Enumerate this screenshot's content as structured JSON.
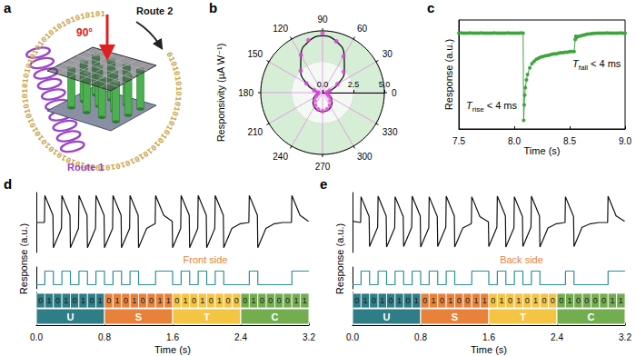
{
  "diagram": {
    "panel": "a",
    "ring_text": "01010101010101010101010101010101010101010101010101010101010101010101010101010101",
    "angle_label": "90°",
    "route1": "Route 1",
    "route2": "Route 2"
  },
  "chart_data": [
    {
      "panel": "b",
      "type": "polar",
      "ylabel": "Responsivity (µA W⁻¹)",
      "annotation": "Route 1",
      "grid": true,
      "xlim": [
        0,
        360
      ],
      "xticks": [
        0,
        30,
        60,
        90,
        120,
        150,
        180,
        210,
        240,
        270,
        300,
        330
      ],
      "ylim": [
        0,
        5
      ],
      "yticks": [
        {
          "value": 0,
          "label": "0.0"
        },
        2.5,
        {
          "value": 5,
          "label": "5.0"
        }
      ],
      "series": [
        {
          "type": "line",
          "color": "#111111",
          "line_style": "solid",
          "x": [
            0,
            15,
            30,
            45,
            60,
            75,
            90,
            105,
            120,
            135,
            150,
            165,
            180,
            195,
            210,
            225,
            240,
            255,
            270,
            285,
            300,
            315,
            330,
            345,
            360
          ],
          "values": [
            0.3,
            0.7,
            1.5,
            2.5,
            3.5,
            4.3,
            4.6,
            4.3,
            3.5,
            2.5,
            1.5,
            0.7,
            0.3,
            0.5,
            0.8,
            1.1,
            1.35,
            1.5,
            1.55,
            1.5,
            1.35,
            1.1,
            0.8,
            0.5,
            0.3
          ]
        },
        {
          "type": "scatter",
          "color": "#d946d9",
          "marker": "circle",
          "x": [
            0,
            15,
            30,
            45,
            60,
            75,
            90,
            105,
            120,
            135,
            150,
            165,
            180,
            195,
            210,
            225,
            240,
            255,
            270,
            285,
            300,
            315,
            330,
            345
          ],
          "values": [
            0.35,
            0.6,
            1.4,
            2.4,
            3.4,
            4.3,
            4.8,
            4.4,
            3.5,
            2.5,
            1.5,
            0.7,
            0.35,
            0.4,
            0.6,
            0.9,
            1.2,
            1.4,
            1.5,
            1.4,
            1.2,
            0.9,
            0.6,
            0.4
          ]
        }
      ]
    },
    {
      "panel": "c",
      "type": "line",
      "xlabel": "Time (s)",
      "ylabel": "Response (a.u.)",
      "color": "#3fa33f",
      "marker": "circle",
      "grid": false,
      "tick_labels": "x",
      "xlim": [
        7.5,
        9.0
      ],
      "xticks": [
        7.5,
        {
          "value": 8,
          "label": "8.0"
        },
        8.5,
        {
          "value": 9,
          "label": "9.0"
        }
      ],
      "ylim": [
        0,
        1
      ],
      "yticks": [],
      "annotations": [
        {
          "italic": "T",
          "sub": "rise",
          "text": " < 4 ms"
        },
        {
          "italic": "T",
          "sub": "fall",
          "text": " < 4 ms"
        }
      ],
      "x": [
        7.5,
        7.52,
        7.54,
        7.56,
        7.58,
        7.6,
        7.62,
        7.64,
        7.66,
        7.68,
        7.7,
        7.72,
        7.74,
        7.76,
        7.78,
        7.8,
        7.82,
        7.84,
        7.86,
        7.88,
        7.9,
        7.92,
        7.94,
        7.96,
        7.98,
        8.0,
        8.02,
        8.04,
        8.06,
        8.08,
        8.085,
        8.09,
        8.095,
        8.1,
        8.11,
        8.12,
        8.14,
        8.16,
        8.18,
        8.2,
        8.22,
        8.24,
        8.26,
        8.28,
        8.3,
        8.32,
        8.34,
        8.36,
        8.38,
        8.4,
        8.42,
        8.44,
        8.46,
        8.48,
        8.5,
        8.52,
        8.54,
        8.55,
        8.555,
        8.56,
        8.57,
        8.58,
        8.6,
        8.62,
        8.64,
        8.66,
        8.68,
        8.7,
        8.72,
        8.74,
        8.76,
        8.78,
        8.8,
        8.82,
        8.84,
        8.86,
        8.88,
        8.9,
        8.92,
        8.94,
        8.96,
        8.98,
        9.0
      ],
      "values": [
        0.88,
        0.881,
        0.879,
        0.88,
        0.88,
        0.881,
        0.88,
        0.879,
        0.88,
        0.88,
        0.881,
        0.88,
        0.88,
        0.879,
        0.88,
        0.88,
        0.881,
        0.88,
        0.88,
        0.879,
        0.88,
        0.88,
        0.881,
        0.88,
        0.88,
        0.879,
        0.88,
        0.88,
        0.881,
        0.88,
        0.08,
        0.22,
        0.31,
        0.38,
        0.45,
        0.5,
        0.56,
        0.6,
        0.62,
        0.64,
        0.65,
        0.66,
        0.665,
        0.67,
        0.675,
        0.68,
        0.685,
        0.69,
        0.69,
        0.695,
        0.7,
        0.7,
        0.705,
        0.705,
        0.71,
        0.71,
        0.71,
        0.82,
        0.85,
        0.84,
        0.845,
        0.85,
        0.855,
        0.86,
        0.865,
        0.87,
        0.872,
        0.875,
        0.877,
        0.878,
        0.879,
        0.88,
        0.88,
        0.88,
        0.881,
        0.88,
        0.88,
        0.879,
        0.88,
        0.88,
        0.881,
        0.88,
        0.88
      ]
    },
    {
      "panel": "d",
      "type": "line",
      "xlabel": "Time (s)",
      "ylabel": "Response (a.u.)",
      "annotation": "Front side",
      "grid": false,
      "tick_labels": "x",
      "xlim": [
        0,
        3.2
      ],
      "xticks": [
        {
          "value": 0,
          "label": "0.0"
        },
        0.8,
        1.6,
        2.4,
        3.2
      ],
      "ylim": [
        0,
        1
      ],
      "yticks": [],
      "y2lim": [
        -0.3,
        1.3
      ],
      "y2ticks": [],
      "series": [
        {
          "color": "#111111",
          "line_style": "solid",
          "x": [
            0,
            0.095,
            0.1,
            0.195,
            0.2,
            0.295,
            0.3,
            0.395,
            0.4,
            0.495,
            0.5,
            0.595,
            0.6,
            0.695,
            0.7,
            0.795,
            0.8,
            0.895,
            0.9,
            0.995,
            1,
            1.095,
            1.1,
            1.195,
            1.2,
            1.295,
            1.3,
            1.395,
            1.4,
            1.495,
            1.5,
            1.595,
            1.6,
            1.695,
            1.7,
            1.795,
            1.8,
            1.895,
            1.9,
            1.995,
            2,
            2.095,
            2.1,
            2.195,
            2.2,
            2.295,
            2.3,
            2.395,
            2.4,
            2.495,
            2.5,
            2.595,
            2.6,
            2.695,
            2.7,
            2.795,
            2.8,
            2.895,
            2.9,
            2.995,
            3,
            3.095,
            3.1,
            3.195
          ],
          "values": [
            0.5,
            0.5,
            0.95,
            0.62,
            0.08,
            0.4,
            0.95,
            0.62,
            0.08,
            0.4,
            0.95,
            0.62,
            0.08,
            0.4,
            0.95,
            0.62,
            0.08,
            0.4,
            0.95,
            0.62,
            0.08,
            0.4,
            0.95,
            0.62,
            0.08,
            0.4,
            0.4,
            0.48,
            0.95,
            0.62,
            0.62,
            0.52,
            0.08,
            0.4,
            0.95,
            0.62,
            0.08,
            0.4,
            0.95,
            0.62,
            0.08,
            0.4,
            0.95,
            0.62,
            0.08,
            0.4,
            0.4,
            0.48,
            0.48,
            0.5,
            0.95,
            0.62,
            0.08,
            0.4,
            0.4,
            0.48,
            0.48,
            0.5,
            0.5,
            0.5,
            0.95,
            0.62,
            0.62,
            0.52
          ]
        },
        {
          "color": "#2b8f9a",
          "type": "step",
          "axis": "y2",
          "line_style": "solid",
          "x": [
            0,
            0.1,
            0.2,
            0.3,
            0.4,
            0.5,
            0.6,
            0.7,
            0.8,
            0.9,
            1,
            1.1,
            1.2,
            1.3,
            1.4,
            1.5,
            1.6,
            1.7,
            1.8,
            1.9,
            2,
            2.1,
            2.2,
            2.3,
            2.4,
            2.5,
            2.6,
            2.7,
            2.8,
            2.9,
            3,
            3.1,
            3.2
          ],
          "values": [
            0,
            1,
            0,
            1,
            0,
            1,
            0,
            1,
            0,
            1,
            0,
            1,
            0,
            0,
            1,
            1,
            0,
            1,
            0,
            1,
            0,
            1,
            0,
            0,
            0,
            1,
            0,
            0,
            0,
            0,
            1,
            1,
            1
          ]
        }
      ],
      "segments": [
        {
          "label": "U",
          "bits": "01010101",
          "start": 0,
          "end": 0.8,
          "color": "#2e7d87"
        },
        {
          "label": "S",
          "bits": "01010011",
          "start": 0.8,
          "end": 1.6,
          "color": "#e8823a"
        },
        {
          "label": "T",
          "bits": "01010100",
          "start": 1.6,
          "end": 2.4,
          "color": "#f4c443"
        },
        {
          "label": "C",
          "bits": "01000011",
          "start": 2.4,
          "end": 3.2,
          "color": "#74ad4f"
        }
      ]
    },
    {
      "panel": "e",
      "type": "line",
      "xlabel": "Time (s)",
      "ylabel": "Response (a.u.)",
      "annotation": "Back side",
      "grid": false,
      "tick_labels": "x",
      "xlim": [
        0,
        3.2
      ],
      "xticks": [
        {
          "value": 0,
          "label": "0.0"
        },
        0.8,
        1.6,
        2.4,
        3.2
      ],
      "ylim": [
        0,
        1
      ],
      "yticks": [],
      "y2lim": [
        -0.3,
        1.3
      ],
      "y2ticks": [],
      "series": [
        {
          "color": "#111111",
          "line_style": "solid",
          "x": [
            0,
            0.095,
            0.1,
            0.195,
            0.2,
            0.295,
            0.3,
            0.395,
            0.4,
            0.495,
            0.5,
            0.595,
            0.6,
            0.695,
            0.7,
            0.795,
            0.8,
            0.895,
            0.9,
            0.995,
            1,
            1.095,
            1.1,
            1.195,
            1.2,
            1.295,
            1.3,
            1.395,
            1.4,
            1.495,
            1.5,
            1.595,
            1.6,
            1.695,
            1.7,
            1.795,
            1.8,
            1.895,
            1.9,
            1.995,
            2,
            2.095,
            2.1,
            2.195,
            2.2,
            2.295,
            2.3,
            2.395,
            2.4,
            2.495,
            2.5,
            2.595,
            2.6,
            2.695,
            2.7,
            2.795,
            2.8,
            2.895,
            2.9,
            2.995,
            3,
            3.095,
            3.1,
            3.195
          ],
          "values": [
            0.52,
            0.5,
            0.93,
            0.6,
            0.1,
            0.42,
            0.94,
            0.61,
            0.09,
            0.41,
            0.93,
            0.6,
            0.1,
            0.42,
            0.94,
            0.61,
            0.09,
            0.41,
            0.93,
            0.6,
            0.1,
            0.42,
            0.94,
            0.61,
            0.09,
            0.41,
            0.41,
            0.48,
            0.93,
            0.6,
            0.6,
            0.51,
            0.1,
            0.42,
            0.94,
            0.61,
            0.09,
            0.41,
            0.93,
            0.6,
            0.1,
            0.42,
            0.94,
            0.61,
            0.09,
            0.41,
            0.41,
            0.48,
            0.48,
            0.5,
            0.93,
            0.6,
            0.1,
            0.42,
            0.42,
            0.48,
            0.48,
            0.5,
            0.5,
            0.5,
            0.94,
            0.61,
            0.61,
            0.52
          ]
        },
        {
          "color": "#2b8f9a",
          "type": "step",
          "axis": "y2",
          "line_style": "solid",
          "x": [
            0,
            0.1,
            0.2,
            0.3,
            0.4,
            0.5,
            0.6,
            0.7,
            0.8,
            0.9,
            1,
            1.1,
            1.2,
            1.3,
            1.4,
            1.5,
            1.6,
            1.7,
            1.8,
            1.9,
            2,
            2.1,
            2.2,
            2.3,
            2.4,
            2.5,
            2.6,
            2.7,
            2.8,
            2.9,
            3,
            3.1,
            3.2
          ],
          "values": [
            0,
            1,
            0,
            1,
            0,
            1,
            0,
            1,
            0,
            1,
            0,
            1,
            0,
            0,
            1,
            1,
            0,
            1,
            0,
            1,
            0,
            1,
            0,
            0,
            0,
            1,
            0,
            0,
            0,
            0,
            1,
            1,
            1
          ]
        }
      ],
      "segments": [
        {
          "label": "U",
          "bits": "01010101",
          "start": 0,
          "end": 0.8,
          "color": "#2e7d87"
        },
        {
          "label": "S",
          "bits": "01010011",
          "start": 0.8,
          "end": 1.6,
          "color": "#e8823a"
        },
        {
          "label": "T",
          "bits": "01010100",
          "start": 1.6,
          "end": 2.4,
          "color": "#f4c443"
        },
        {
          "label": "C",
          "bits": "01000011",
          "start": 2.4,
          "end": 3.2,
          "color": "#74ad4f"
        }
      ]
    }
  ]
}
